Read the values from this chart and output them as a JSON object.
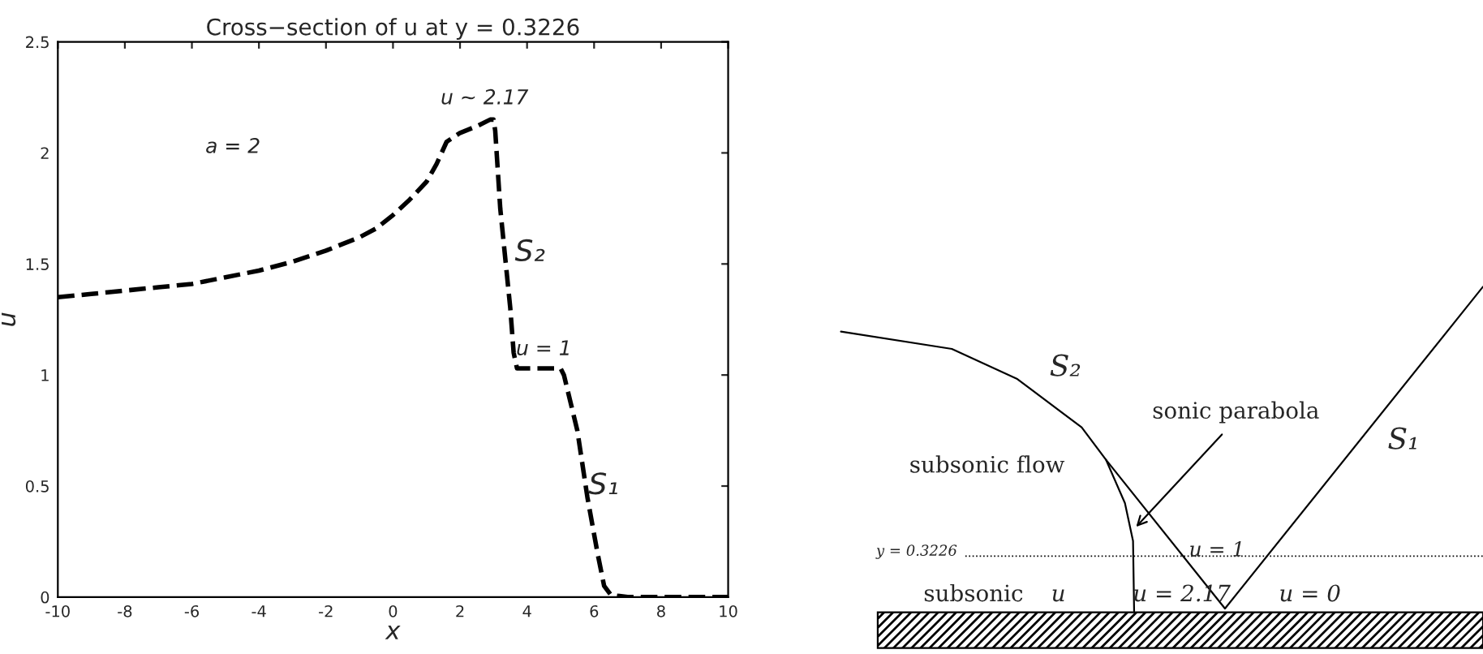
{
  "chart_data": [
    {
      "type": "line",
      "title": "Cross−section of u at y = 0.3226",
      "xlabel": "x",
      "ylabel": "u",
      "x": [
        -10,
        -9,
        -8,
        -7,
        -6,
        -5,
        -4,
        -3,
        -2,
        -1,
        -0.5,
        0,
        0.5,
        1,
        1.3,
        1.6,
        2,
        2.5,
        2.9,
        3.0,
        3.05,
        3.2,
        3.4,
        3.5,
        3.6,
        3.7,
        4,
        4.5,
        5,
        5.1,
        5.5,
        5.8,
        6.1,
        6.3,
        6.5,
        7,
        8,
        9,
        10
      ],
      "series": [
        {
          "color": "#000000",
          "line_style": "dashed",
          "values": [
            1.35,
            1.365,
            1.38,
            1.395,
            1.41,
            1.44,
            1.47,
            1.51,
            1.56,
            1.62,
            1.66,
            1.72,
            1.79,
            1.87,
            1.95,
            2.05,
            2.09,
            2.12,
            2.15,
            2.15,
            2.1,
            1.75,
            1.45,
            1.3,
            1.1,
            1.03,
            1.03,
            1.03,
            1.03,
            1.0,
            0.75,
            0.45,
            0.2,
            0.05,
            0.01,
            0,
            0,
            0,
            0
          ]
        }
      ],
      "xlim": [
        -10,
        10
      ],
      "xticks": [
        -10,
        -8,
        -6,
        -4,
        -2,
        0,
        2,
        4,
        6,
        8,
        10
      ],
      "ylim": [
        0,
        2.5
      ],
      "yticks": [
        0,
        0.5,
        1,
        1.5,
        2,
        2.5
      ],
      "grid": false,
      "legend": false,
      "marker": "none",
      "annotations": [
        {
          "text": "u ~ 2.17",
          "x": 3,
          "y": 2.17
        },
        "a = 2",
        {
          "text": "S₂",
          "x": 3.5,
          "y": 1.55
        },
        {
          "text": "u = 1",
          "x": 4.5,
          "y": 1.03
        },
        {
          "text": "S₁",
          "x": 5.7,
          "y": 0.5
        }
      ]
    },
    {
      "type": "other",
      "annotations": [
        "S₂",
        "sonic parabola",
        "S₁",
        "subsonic flow",
        "y = 0.3226",
        "u = 1",
        "subsonic",
        "u",
        "u = 2.17",
        "u = 0"
      ]
    }
  ]
}
